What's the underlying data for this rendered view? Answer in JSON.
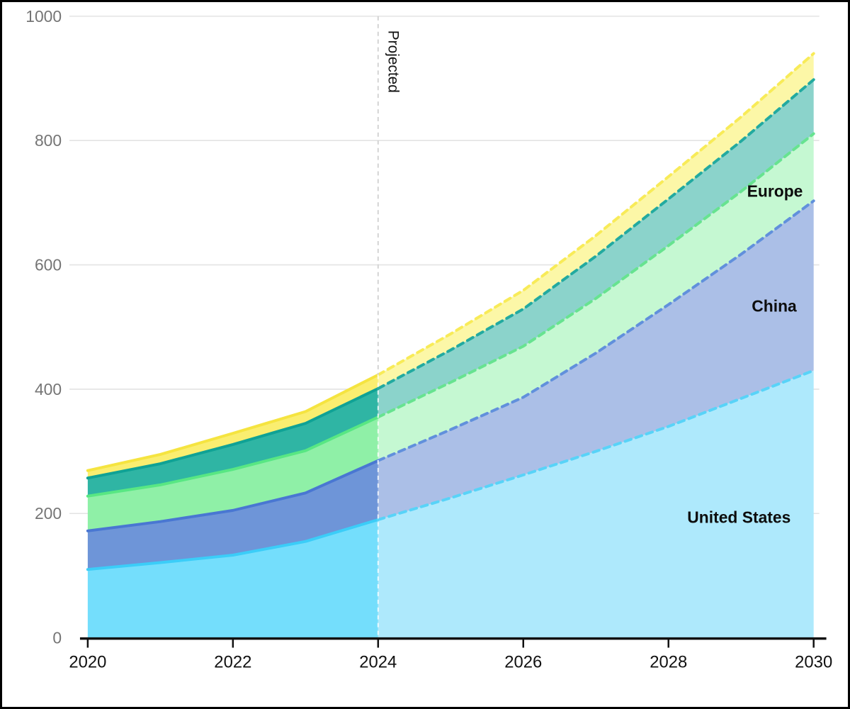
{
  "chart_data": {
    "type": "area",
    "stacked": true,
    "title": "",
    "xlabel": "",
    "ylabel": "",
    "x": [
      2020,
      2021,
      2022,
      2023,
      2024,
      2025,
      2026,
      2027,
      2028,
      2029,
      2030
    ],
    "xlim": [
      2020,
      2030
    ],
    "ylim": [
      0,
      1000
    ],
    "xticks": [
      2020,
      2022,
      2024,
      2026,
      2028,
      2030
    ],
    "yticks": [
      0,
      200,
      400,
      600,
      800,
      1000
    ],
    "grid": "horizontal",
    "legend_position": "labels-inside-areas",
    "divider": {
      "x": 2024,
      "label": "Projected"
    },
    "projection_note": "solid fills/lines before 2024, lighter fills with dashed lines after 2024",
    "series": [
      {
        "label": "United States",
        "values": [
          110,
          121,
          133,
          155,
          190,
          225,
          262,
          300,
          340,
          385,
          430
        ],
        "fill": "#74DEFC",
        "fill_projected": "#AEE9FC",
        "line": "#3BCDF8",
        "line_projected": "#58D3F8"
      },
      {
        "label": "China",
        "values": [
          62,
          66,
          72,
          78,
          95,
          110,
          125,
          158,
          196,
          232,
          273
        ],
        "fill": "#6E95D8",
        "fill_projected": "#ABBFE7",
        "line": "#4977D2",
        "line_projected": "#6190DC"
      },
      {
        "label": "Europe",
        "values": [
          56,
          59,
          66,
          68,
          70,
          76,
          82,
          88,
          95,
          101,
          108
        ],
        "fill": "#8FF0A7",
        "fill_projected": "#C5F8D2",
        "line": "#58E783",
        "line_projected": "#67E390"
      },
      {
        "label": "",
        "values": [
          29,
          34,
          40,
          44,
          46,
          52,
          60,
          68,
          75,
          81,
          87
        ],
        "fill": "#2FB5A4",
        "fill_projected": "#8BD3CB",
        "line": "#0FA295",
        "line_projected": "#22AAA0"
      },
      {
        "label": "",
        "values": [
          12,
          15,
          18,
          19,
          22,
          26,
          30,
          33,
          36,
          39,
          42
        ],
        "fill": "#FAEE70",
        "fill_projected": "#FCF7A7",
        "line": "#F5E440",
        "line_projected": "#F8EB58"
      }
    ],
    "annotations": [
      {
        "text": "Europe",
        "x": 1097,
        "y": 268
      },
      {
        "text": "China",
        "x": 1096,
        "y": 431
      },
      {
        "text": "United States",
        "x": 1046,
        "y": 731
      }
    ],
    "style": {
      "grid_color": "#E3E3E3",
      "axis_color": "#111111",
      "ytick_color": "#757575",
      "xtick_color": "#111111",
      "annotation_color": "#0D0D0D",
      "divider_color_above": "#D4D4D4",
      "divider_color_over_area": "rgba(255,255,255,0.8)",
      "background": "#FFFFFF",
      "border_color": "#000000"
    }
  }
}
